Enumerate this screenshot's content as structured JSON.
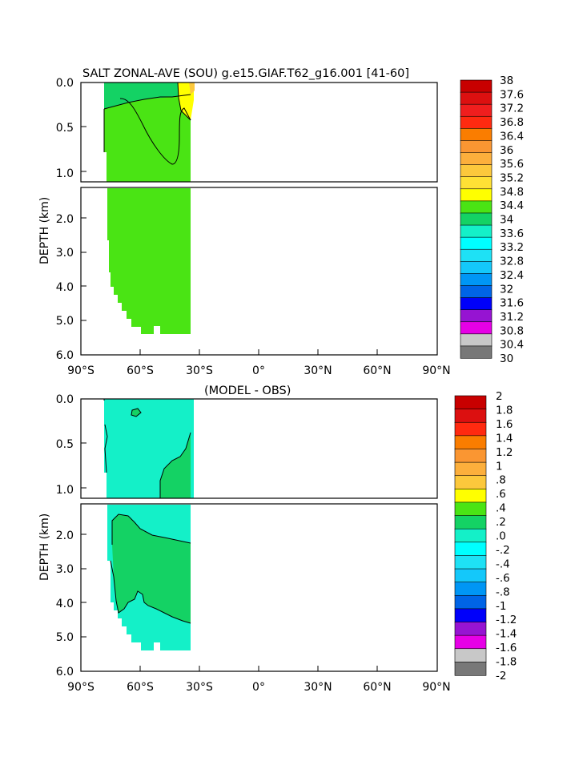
{
  "chart_data": [
    {
      "type": "heatmap",
      "title": "SALT ZONAL-AVE (SOU) g.e15.GIAF.T62_g16.001  [41-60]",
      "xlabel": "",
      "ylabel": "DEPTH (km)",
      "xticks": [
        "90°S",
        "60°S",
        "30°S",
        "0°",
        "30°N",
        "60°N",
        "90°N"
      ],
      "yticks_top": [
        "0.0",
        "0.5",
        "1.0"
      ],
      "yticks_bottom": [
        "2.0",
        "3.0",
        "4.0",
        "5.0",
        "6.0"
      ],
      "xlim": [
        -90,
        90
      ],
      "ylim": [
        6.0,
        0.0
      ],
      "colorbar": {
        "labels": [
          "38",
          "37.6",
          "37.2",
          "36.8",
          "36.4",
          "36",
          "35.6",
          "35.2",
          "34.8",
          "34.4",
          "34",
          "33.6",
          "33.2",
          "32.8",
          "32.4",
          "32",
          "31.6",
          "31.2",
          "30.8",
          "30.4",
          "30"
        ],
        "colors": [
          "#c80000",
          "#dc1010",
          "#f01e1e",
          "#ff2a10",
          "#fa7d00",
          "#fa9632",
          "#fcaf3c",
          "#fcc83c",
          "#ffe035",
          "#ffff00",
          "#4ae414",
          "#14d264",
          "#14f0c8",
          "#00ffff",
          "#1ee1f5",
          "#14c8fa",
          "#0096f5",
          "#0064e6",
          "#0000fa",
          "#9614d2",
          "#e600e6",
          "#c8c8c8",
          "#787878"
        ]
      },
      "fields": [
        {
          "name": "34.4-34.8",
          "color": "#4ae414"
        },
        {
          "name": "34.8-35.2",
          "color": "#ffff00"
        },
        {
          "name": "35.2-35.6",
          "color": "#fcc83c"
        }
      ]
    },
    {
      "type": "heatmap",
      "title": "(MODEL - OBS)",
      "xlabel": "",
      "ylabel": "DEPTH (km)",
      "xticks": [
        "90°S",
        "60°S",
        "30°S",
        "0°",
        "30°N",
        "60°N",
        "90°N"
      ],
      "yticks_top": [
        "0.0",
        "0.5",
        "1.0"
      ],
      "yticks_bottom": [
        "2.0",
        "3.0",
        "4.0",
        "5.0",
        "6.0"
      ],
      "xlim": [
        -90,
        90
      ],
      "ylim": [
        6.0,
        0.0
      ],
      "colorbar": {
        "labels": [
          "2",
          "1.8",
          "1.6",
          "1.4",
          "1.2",
          "1",
          ".8",
          ".6",
          ".4",
          ".2",
          ".0",
          "-.2",
          "-.4",
          "-.6",
          "-.8",
          "-1",
          "-1.2",
          "-1.4",
          "-1.6",
          "-1.8",
          "-2"
        ],
        "colors": [
          "#c80000",
          "#dc1010",
          "#ff2a10",
          "#fa7d00",
          "#fa9632",
          "#fcaf3c",
          "#fcc83c",
          "#ffff00",
          "#4ae414",
          "#14d264",
          "#14f0c8",
          "#00ffff",
          "#1ee1f5",
          "#14c8fa",
          "#0096f5",
          "#0064e6",
          "#0000fa",
          "#9614d2",
          "#e600e6",
          "#c8c8c8",
          "#787878"
        ]
      },
      "fields": [
        {
          "name": "-0.2-0.0",
          "color": "#14f0c8"
        },
        {
          "name": "0.0-0.2",
          "color": "#14d264"
        },
        {
          "name": "0.2-0.4",
          "color": "#4ae414"
        }
      ]
    }
  ]
}
